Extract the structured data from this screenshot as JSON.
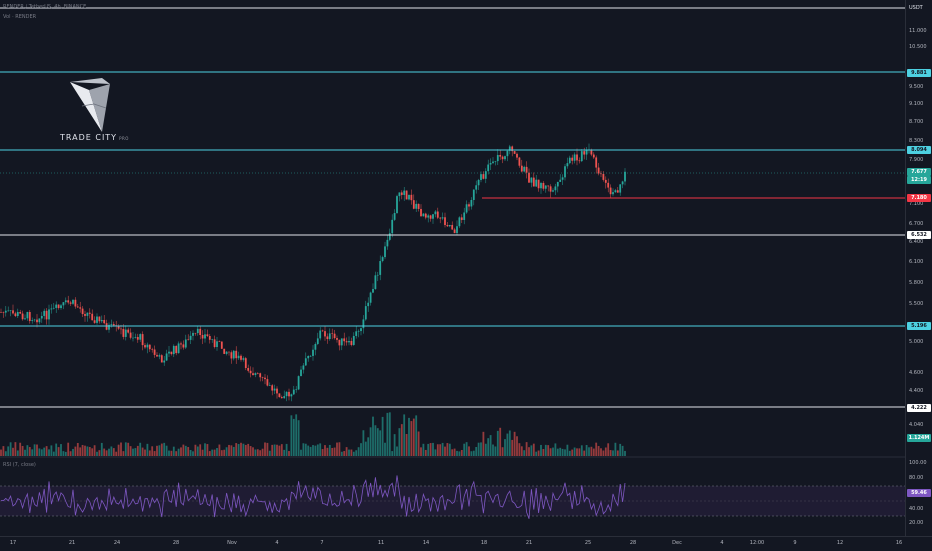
{
  "header": {
    "symbol_line": "RENDER / TetherUS, 4h, BINANCE",
    "vol_line": "Vol · RENDER"
  },
  "logo": {
    "name": "TRADE CITY",
    "suffix": "PRO"
  },
  "price_axis": {
    "currency": "USDT",
    "ticks": [
      "11.000",
      "10.500",
      "9.500",
      "9.100",
      "8.700",
      "8.300",
      "7.900",
      "7.100",
      "6.700",
      "6.400",
      "6.100",
      "5.800",
      "5.500",
      "5.000",
      "4.600",
      "4.400",
      "4.040"
    ],
    "tags": [
      {
        "label": "9.881",
        "kind": "cyan"
      },
      {
        "label": "8.094",
        "kind": "cyan"
      },
      {
        "label": "7.677",
        "kind": "green"
      },
      {
        "label": "12:19",
        "kind": "green"
      },
      {
        "label": "7.180",
        "kind": "red"
      },
      {
        "label": "6.532",
        "kind": "white"
      },
      {
        "label": "5.196",
        "kind": "cyan"
      },
      {
        "label": "4.222",
        "kind": "white"
      },
      {
        "label": "1.124M",
        "kind": "green"
      }
    ]
  },
  "rsi": {
    "label": "RSI (7, close)",
    "ticks": [
      "100.00",
      "80.00",
      "40.00",
      "20.00"
    ],
    "value_tag": "59.46"
  },
  "time_axis": {
    "labels": [
      "17",
      "21",
      "24",
      "28",
      "Nov",
      "4",
      "7",
      "11",
      "14",
      "18",
      "21",
      "25",
      "28",
      "Dec",
      "4",
      "12:00",
      "9",
      "12",
      "16"
    ]
  },
  "colors": {
    "background": "#131722",
    "up": "#26a69a",
    "down": "#ef5350",
    "cyan_level": "#4dd0e1",
    "white_level": "#e0e3eb",
    "red_level": "#f23645",
    "rsi_line": "#7e57c2"
  }
}
